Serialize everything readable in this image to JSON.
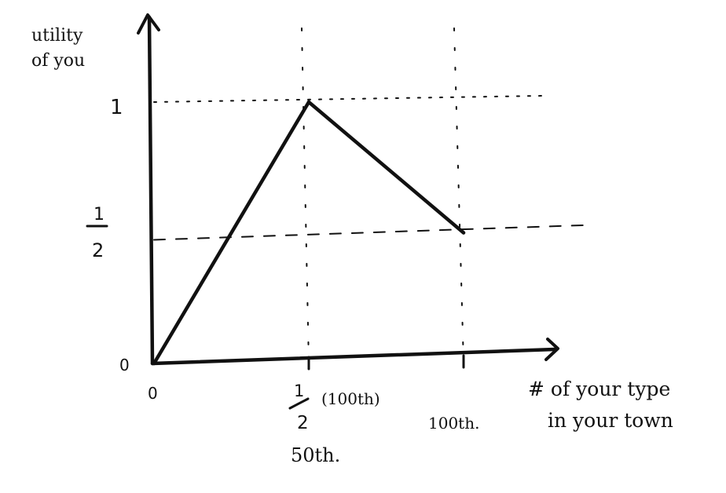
{
  "chart_data": {
    "type": "line",
    "ylabel_lines": [
      "utility",
      "of you"
    ],
    "xlabel_lines": [
      "# of your type",
      "in your town"
    ],
    "x": [
      0,
      50,
      100
    ],
    "y": [
      0,
      1,
      0.5
    ],
    "xlim": [
      0,
      100
    ],
    "ylim": [
      0,
      1
    ],
    "x_origin_label": "0",
    "y_origin_label": "0",
    "y_tick_one": "1",
    "y_tick_half": {
      "numerator": "1",
      "denominator": "2"
    },
    "x_tick_half": {
      "numerator": "1",
      "denominator": "2",
      "note": "(100th)",
      "second_line": "50th."
    },
    "x_tick_100": "100th.",
    "grid": "dotted guide lines at the peak and at x = 100th, dashed line at y = 1/2",
    "line_color": "#111111"
  }
}
